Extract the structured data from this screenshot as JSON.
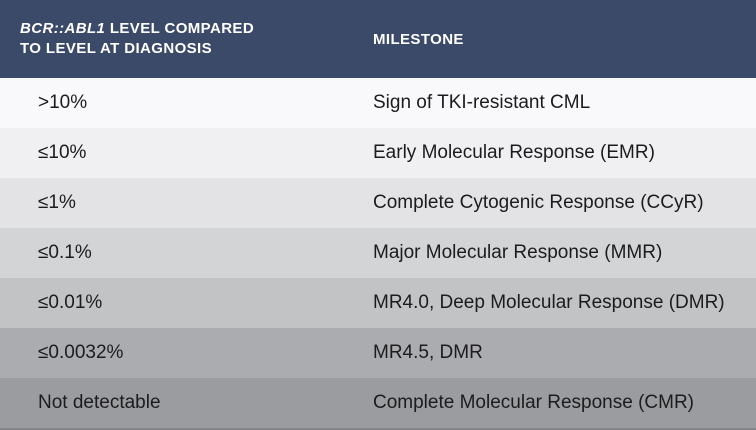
{
  "colors": {
    "header_bg": "#3C4A69",
    "header_text": "#FFFFFF",
    "body_text": "#1C1C1E",
    "bottom_edge": "#85868A"
  },
  "header": {
    "col1_gene": "BCR::ABL1",
    "col1_line1_rest": "LEVEL COMPARED",
    "col1_line2": "TO LEVEL AT DIAGNOSIS",
    "col2": "MILESTONE"
  },
  "table": {
    "rows": [
      {
        "level": ">10%",
        "milestone": "Sign of TKI-resistant CML",
        "bg": "#F9F9FB"
      },
      {
        "level": "≤10%",
        "milestone": "Early Molecular Response (EMR)",
        "bg": "#F0F0F2"
      },
      {
        "level": "≤1%",
        "milestone": "Complete Cytogenic Response (CCyR)",
        "bg": "#E3E3E5"
      },
      {
        "level": "≤0.1%",
        "milestone": "Major Molecular Response (MMR)",
        "bg": "#D3D4D6"
      },
      {
        "level": "≤0.01%",
        "milestone": "MR4.0, Deep Molecular Response (DMR)",
        "bg": "#C2C3C5"
      },
      {
        "level": "≤0.0032%",
        "milestone": "MR4.5, DMR",
        "bg": "#ABACAF"
      },
      {
        "level": "Not detectable",
        "milestone": "Complete Molecular Response (CMR)",
        "bg": "#9B9C9F"
      }
    ]
  },
  "chart_data": {
    "type": "table",
    "columns": [
      "BCR::ABL1 LEVEL COMPARED TO LEVEL AT DIAGNOSIS",
      "MILESTONE"
    ],
    "rows": [
      [
        ">10%",
        "Sign of TKI-resistant CML"
      ],
      [
        "≤10%",
        "Early Molecular Response (EMR)"
      ],
      [
        "≤1%",
        "Complete Cytogenic Response (CCyR)"
      ],
      [
        "≤0.1%",
        "Major Molecular Response (MMR)"
      ],
      [
        "≤0.01%",
        "MR4.0, Deep Molecular Response (DMR)"
      ],
      [
        "≤0.0032%",
        "MR4.5, DMR"
      ],
      [
        "Not detectable",
        "Complete Molecular Response (CMR)"
      ]
    ]
  }
}
